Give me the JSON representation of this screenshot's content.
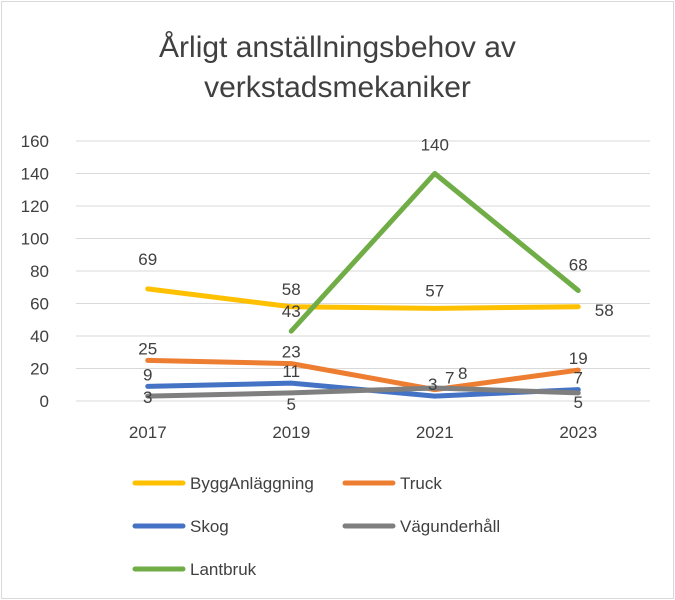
{
  "chart_data": {
    "type": "line",
    "title_line1": "Årligt anställningsbehov av",
    "title_line2": "verkstadsmekaniker",
    "categories": [
      "2017",
      "2019",
      "2021",
      "2023"
    ],
    "ylim": [
      0,
      160
    ],
    "yticks": [
      0,
      20,
      40,
      60,
      80,
      100,
      120,
      140,
      160
    ],
    "grid": true,
    "legend_position": "bottom",
    "series": [
      {
        "name": "ByggAnläggning",
        "color": "#ffc000",
        "values": [
          69,
          58,
          57,
          58
        ]
      },
      {
        "name": "Truck",
        "color": "#ed7d31",
        "values": [
          25,
          23,
          7,
          19
        ]
      },
      {
        "name": "Skog",
        "color": "#4472c4",
        "values": [
          9,
          11,
          3,
          7
        ]
      },
      {
        "name": "Vägunderhåll",
        "color": "#7f7f7f",
        "values": [
          3,
          5,
          8,
          5
        ]
      },
      {
        "name": "Lantbruk",
        "color": "#70ad47",
        "values": [
          null,
          43,
          140,
          68
        ]
      }
    ]
  }
}
